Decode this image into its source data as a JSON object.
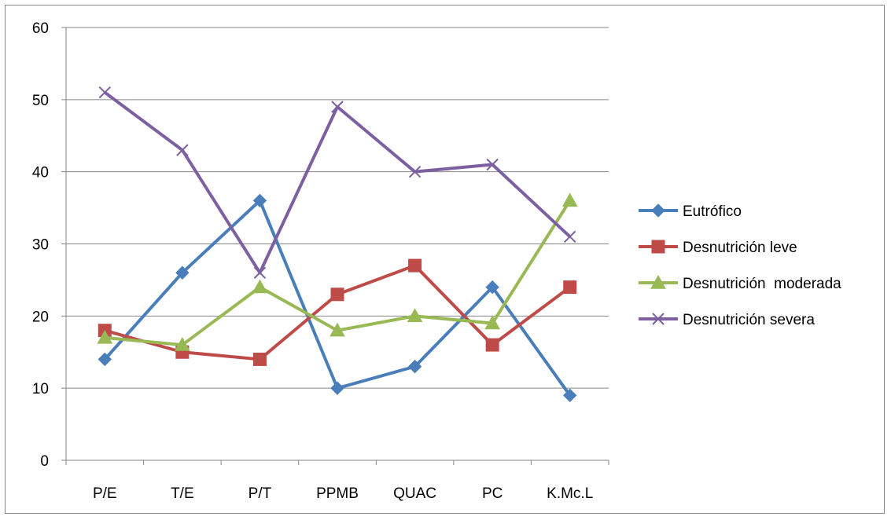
{
  "chart_data": {
    "type": "line",
    "categories": [
      "P/E",
      "T/E",
      "P/T",
      "PPMB",
      "QUAC",
      "PC",
      "K.Mc.L"
    ],
    "ylim": [
      0,
      60
    ],
    "yticks": [
      0,
      10,
      20,
      30,
      40,
      50,
      60
    ],
    "grid": true,
    "legend_position": "right",
    "series": [
      {
        "name": "Eutrófico",
        "color": "#4a7ebb",
        "marker": "diamond",
        "values": [
          14,
          26,
          36,
          10,
          13,
          24,
          9
        ]
      },
      {
        "name": "Desnutrición leve",
        "color": "#be4b48",
        "marker": "square",
        "values": [
          18,
          15,
          14,
          23,
          27,
          16,
          24
        ]
      },
      {
        "name": "Desnutrición  moderada",
        "color": "#98b954",
        "marker": "triangle",
        "values": [
          17,
          16,
          24,
          18,
          20,
          19,
          36
        ]
      },
      {
        "name": "Desnutrición severa",
        "color": "#7d60a0",
        "marker": "x",
        "values": [
          51,
          43,
          26,
          49,
          40,
          41,
          31
        ]
      }
    ]
  }
}
